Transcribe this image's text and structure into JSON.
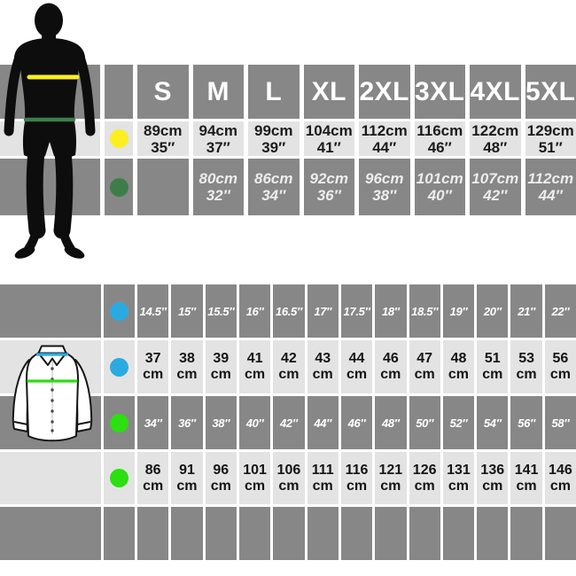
{
  "colors": {
    "background": "#ffffff",
    "row_gray": "#878787",
    "row_light": "#e3e3e3",
    "silhouette_black": "#0d0d0d",
    "yellow": "#fbee21",
    "dark_green": "#3e7d4a",
    "blue": "#29abe2",
    "bright_green": "#2bdf10",
    "header_text": "#ffffff",
    "dark_text": "#1b1b1b"
  },
  "top_table": {
    "sizes": [
      "S",
      "M",
      "L",
      "XL",
      "2XL",
      "3XL",
      "4XL",
      "5XL"
    ],
    "chest_row": [
      "89cm\n35″",
      "94cm\n37″",
      "99cm\n39″",
      "104cm\n41″",
      "112cm\n44″",
      "116cm\n46″",
      "122cm\n48″",
      "129cm\n51″"
    ],
    "waist_row": [
      "",
      "80cm\n32″",
      "86cm\n34″",
      "92cm\n36″",
      "96cm\n38″",
      "101cm\n40″",
      "107cm\n42″",
      "112cm\n44″"
    ]
  },
  "bottom_table": {
    "collar_inches": [
      "14.5″",
      "15″",
      "15.5″",
      "16″",
      "16.5″",
      "17″",
      "17.5″",
      "18″",
      "18.5″",
      "19″",
      "20″",
      "21″",
      "22″"
    ],
    "collar_cm": [
      "37\ncm",
      "38\ncm",
      "39\ncm",
      "41\ncm",
      "42\ncm",
      "43\ncm",
      "44\ncm",
      "46\ncm",
      "47\ncm",
      "48\ncm",
      "51\ncm",
      "53\ncm",
      "56\ncm"
    ],
    "chest_inches": [
      "34″",
      "36″",
      "38″",
      "40″",
      "42″",
      "44″",
      "46″",
      "48″",
      "50″",
      "52″",
      "54″",
      "56″",
      "58″"
    ],
    "chest_cm": [
      "86\ncm",
      "91\ncm",
      "96\ncm",
      "101\ncm",
      "106\ncm",
      "111\ncm",
      "116\ncm",
      "121\ncm",
      "126\ncm",
      "131\ncm",
      "136\ncm",
      "141\ncm",
      "146\ncm"
    ],
    "footer": [
      "",
      "",
      "",
      "",
      "",
      "",
      "",
      "",
      "",
      "",
      "",
      "",
      ""
    ]
  },
  "chart_data": [
    {
      "type": "table",
      "title": "Adult body size chart",
      "columns": [
        "S",
        "M",
        "L",
        "XL",
        "2XL",
        "3XL",
        "4XL",
        "5XL"
      ],
      "rows": [
        {
          "marker": "yellow-chest-line",
          "cm": [
            89,
            94,
            99,
            104,
            112,
            116,
            122,
            129
          ],
          "inches": [
            35,
            37,
            39,
            41,
            44,
            46,
            48,
            51
          ]
        },
        {
          "marker": "green-waist-line",
          "cm": [
            null,
            80,
            86,
            92,
            96,
            101,
            107,
            112
          ],
          "inches": [
            null,
            32,
            34,
            36,
            38,
            40,
            42,
            44
          ]
        }
      ]
    },
    {
      "type": "table",
      "title": "Shirt size chart",
      "rows": [
        {
          "marker": "blue-collar-line",
          "unit": "inches",
          "values": [
            14.5,
            15,
            15.5,
            16,
            16.5,
            17,
            17.5,
            18,
            18.5,
            19,
            20,
            21,
            22
          ]
        },
        {
          "marker": "blue-collar-line",
          "unit": "cm",
          "values": [
            37,
            38,
            39,
            41,
            42,
            43,
            44,
            46,
            47,
            48,
            51,
            53,
            56
          ]
        },
        {
          "marker": "green-chest-line",
          "unit": "inches",
          "values": [
            34,
            36,
            38,
            40,
            42,
            44,
            46,
            48,
            50,
            52,
            54,
            56,
            58
          ]
        },
        {
          "marker": "green-chest-line",
          "unit": "cm",
          "values": [
            86,
            91,
            96,
            101,
            106,
            111,
            116,
            121,
            126,
            131,
            136,
            141,
            146
          ]
        }
      ]
    }
  ]
}
